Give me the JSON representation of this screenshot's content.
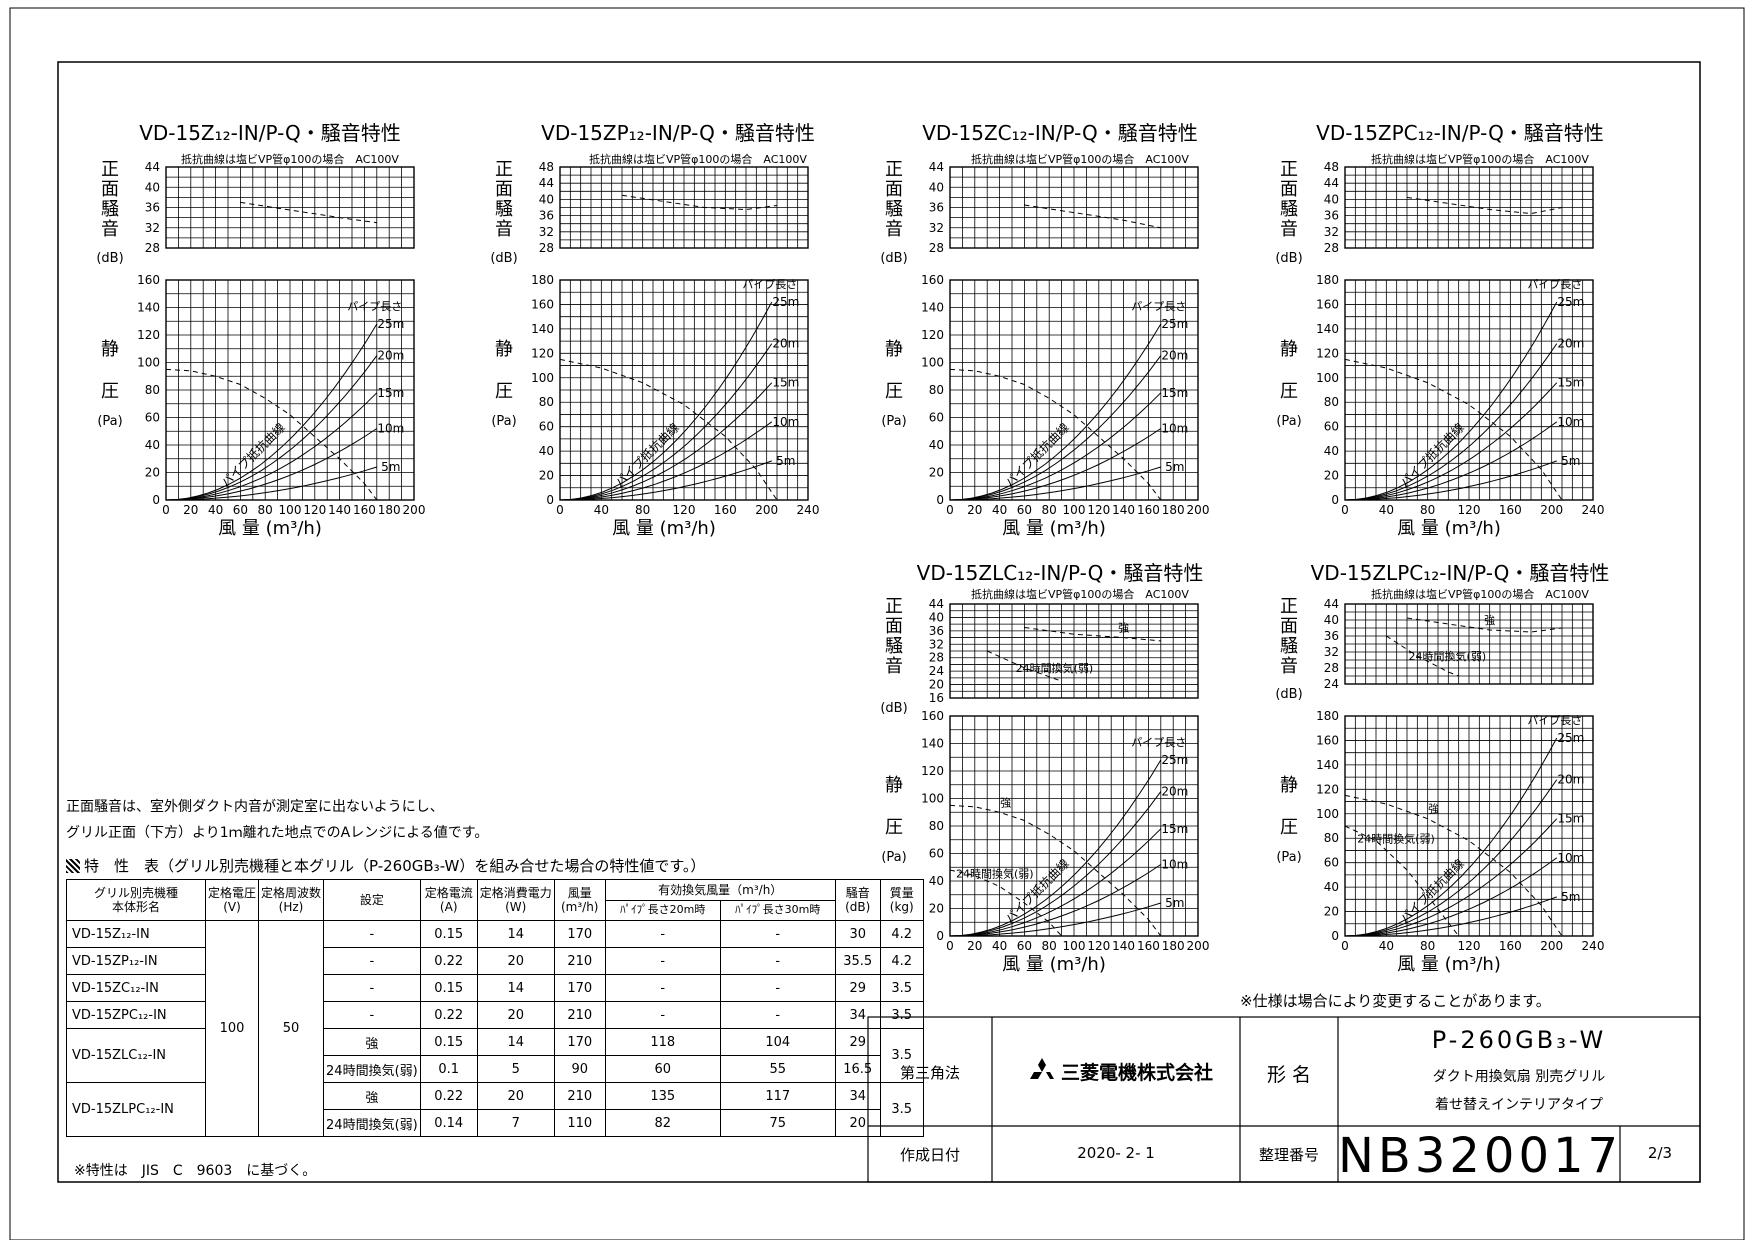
{
  "charts": [
    {
      "id": "c1",
      "title": "VD-15Z₁₂-IN/P-Q・騒音特性",
      "subtitle": "抵抗曲線は塩ビVP管φ100の場合　AC100V",
      "noise": {
        "ylabel": "正面騒音",
        "unit": "(dB)",
        "yticks": [
          "44",
          "40",
          "36",
          "32",
          "28"
        ]
      },
      "pressure": {
        "ylabel": [
          "静",
          "圧"
        ],
        "unit": "(Pa)",
        "yticks": [
          "160",
          "140",
          "120",
          "100",
          "80",
          "60",
          "40",
          "20",
          "0"
        ]
      },
      "xticks": [
        "0",
        "20",
        "40",
        "60",
        "80",
        "100",
        "120",
        "140",
        "160",
        "180",
        "200"
      ],
      "xlabel": "風 量 (m³/h)",
      "pipe_header": "パイプ長さ",
      "pipe_labels": [
        "25m",
        "20m",
        "15m",
        "10m",
        "5m"
      ],
      "curve_label": "パイプ抵抗曲線"
    },
    {
      "id": "c2",
      "title": "VD-15ZP₁₂-IN/P-Q・騒音特性",
      "subtitle": "抵抗曲線は塩ビVP管φ100の場合　AC100V",
      "noise": {
        "ylabel": "正面騒音",
        "unit": "(dB)",
        "yticks": [
          "48",
          "44",
          "40",
          "36",
          "32",
          "28"
        ]
      },
      "pressure": {
        "ylabel": [
          "静",
          "圧"
        ],
        "unit": "(Pa)",
        "yticks": [
          "180",
          "160",
          "140",
          "120",
          "100",
          "80",
          "60",
          "40",
          "20",
          "0"
        ]
      },
      "xticks": [
        "0",
        "40",
        "80",
        "120",
        "160",
        "200",
        "240"
      ],
      "xlabel": "風 量 (m³/h)",
      "pipe_header": "パイプ長さ",
      "pipe_labels": [
        "25m",
        "20m",
        "15m",
        "10m",
        "5m"
      ],
      "curve_label": "パイプ抵抗曲線"
    },
    {
      "id": "c3",
      "title": "VD-15ZC₁₂-IN/P-Q・騒音特性",
      "subtitle": "抵抗曲線は塩ビVP管φ100の場合　AC100V",
      "noise": {
        "ylabel": "正面騒音",
        "unit": "(dB)",
        "yticks": [
          "44",
          "40",
          "36",
          "32",
          "28"
        ]
      },
      "pressure": {
        "ylabel": [
          "静",
          "圧"
        ],
        "unit": "(Pa)",
        "yticks": [
          "160",
          "140",
          "120",
          "100",
          "80",
          "60",
          "40",
          "20",
          "0"
        ]
      },
      "xticks": [
        "0",
        "20",
        "40",
        "60",
        "80",
        "100",
        "120",
        "140",
        "160",
        "180",
        "200"
      ],
      "xlabel": "風 量 (m³/h)",
      "pipe_header": "パイプ長さ",
      "pipe_labels": [
        "25m",
        "20m",
        "15m",
        "10m",
        "5m"
      ],
      "curve_label": "パイプ抵抗曲線"
    },
    {
      "id": "c4",
      "title": "VD-15ZPC₁₂-IN/P-Q・騒音特性",
      "subtitle": "抵抗曲線は塩ビVP管φ100の場合　AC100V",
      "noise": {
        "ylabel": "正面騒音",
        "unit": "(dB)",
        "yticks": [
          "48",
          "44",
          "40",
          "36",
          "32",
          "28"
        ]
      },
      "pressure": {
        "ylabel": [
          "静",
          "圧"
        ],
        "unit": "(Pa)",
        "yticks": [
          "180",
          "160",
          "140",
          "120",
          "100",
          "80",
          "60",
          "40",
          "20",
          "0"
        ]
      },
      "xticks": [
        "0",
        "40",
        "80",
        "120",
        "160",
        "200",
        "240"
      ],
      "xlabel": "風 量 (m³/h)",
      "pipe_header": "パイプ長さ",
      "pipe_labels": [
        "25m",
        "20m",
        "15m",
        "10m",
        "5m"
      ],
      "curve_label": "パイプ抵抗曲線"
    },
    {
      "id": "c5",
      "title": "VD-15ZLC₁₂-IN/P-Q・騒音特性",
      "subtitle": "抵抗曲線は塩ビVP管φ100の場合　AC100V",
      "noise": {
        "ylabel": "正面騒音",
        "unit": "(dB)",
        "yticks": [
          "44",
          "40",
          "36",
          "32",
          "28",
          "24",
          "20",
          "16"
        ],
        "strong": "強",
        "weak": "24時間換気(弱)"
      },
      "pressure": {
        "ylabel": [
          "静",
          "圧"
        ],
        "unit": "(Pa)",
        "yticks": [
          "160",
          "140",
          "120",
          "100",
          "80",
          "60",
          "40",
          "20",
          "0"
        ],
        "strong": "強",
        "weak": "24時間換気(弱)"
      },
      "xticks": [
        "0",
        "20",
        "40",
        "60",
        "80",
        "100",
        "120",
        "140",
        "160",
        "180",
        "200"
      ],
      "xlabel": "風 量 (m³/h)",
      "pipe_header": "パイプ長さ",
      "pipe_labels": [
        "25m",
        "20m",
        "15m",
        "10m",
        "5m"
      ],
      "curve_label": "パイプ抵抗曲線"
    },
    {
      "id": "c6",
      "title": "VD-15ZLPC₁₂-IN/P-Q・騒音特性",
      "subtitle": "抵抗曲線は塩ビVP管φ100の場合　AC100V",
      "noise": {
        "ylabel": "正面騒音",
        "unit": "(dB)",
        "yticks": [
          "44",
          "40",
          "36",
          "32",
          "28",
          "24"
        ],
        "strong": "強",
        "weak": "24時間換気(弱)"
      },
      "pressure": {
        "ylabel": [
          "静",
          "圧"
        ],
        "unit": "(Pa)",
        "yticks": [
          "180",
          "160",
          "140",
          "120",
          "100",
          "80",
          "60",
          "40",
          "20",
          "0"
        ],
        "strong": "強",
        "weak": "24時間換気(弱)"
      },
      "xticks": [
        "0",
        "40",
        "80",
        "120",
        "160",
        "200",
        "240"
      ],
      "xlabel": "風 量 (m³/h)",
      "pipe_header": "パイプ長さ",
      "pipe_labels": [
        "25m",
        "20m",
        "15m",
        "10m",
        "5m"
      ],
      "curve_label": "パイプ抵抗曲線"
    }
  ],
  "chart_data": [
    {
      "type": "line",
      "id": "c1",
      "x_range": [
        0,
        200
      ],
      "noise_range": [
        28,
        44
      ],
      "pressure_range": [
        0,
        160
      ],
      "noise": [
        [
          60,
          37
        ],
        [
          100,
          35.5
        ],
        [
          140,
          34
        ],
        [
          170,
          33
        ]
      ],
      "pq": [
        [
          0,
          95
        ],
        [
          20,
          94
        ],
        [
          40,
          90
        ],
        [
          60,
          84
        ],
        [
          80,
          74
        ],
        [
          100,
          62
        ],
        [
          120,
          46
        ],
        [
          140,
          30
        ],
        [
          160,
          12
        ],
        [
          170,
          0
        ]
      ],
      "pipe": [
        {
          "name": "25m",
          "end": [
            170,
            128
          ]
        },
        {
          "name": "20m",
          "end": [
            170,
            105
          ]
        },
        {
          "name": "15m",
          "end": [
            170,
            78
          ]
        },
        {
          "name": "10m",
          "end": [
            170,
            52
          ]
        },
        {
          "name": "5m",
          "end": [
            170,
            24
          ]
        }
      ]
    },
    {
      "type": "line",
      "id": "c2",
      "x_range": [
        0,
        240
      ],
      "noise_range": [
        28,
        48
      ],
      "pressure_range": [
        0,
        180
      ],
      "noise": [
        [
          60,
          41
        ],
        [
          100,
          39.5
        ],
        [
          140,
          38
        ],
        [
          180,
          37.5
        ],
        [
          210,
          38.5
        ]
      ],
      "pq": [
        [
          0,
          115
        ],
        [
          40,
          108
        ],
        [
          80,
          96
        ],
        [
          120,
          78
        ],
        [
          160,
          52
        ],
        [
          190,
          25
        ],
        [
          210,
          0
        ]
      ],
      "pipe": [
        {
          "name": "25m",
          "end": [
            205,
            162
          ]
        },
        {
          "name": "20m",
          "end": [
            205,
            128
          ]
        },
        {
          "name": "15m",
          "end": [
            205,
            96
          ]
        },
        {
          "name": "10m",
          "end": [
            205,
            64
          ]
        },
        {
          "name": "5m",
          "end": [
            205,
            32
          ]
        }
      ]
    },
    {
      "type": "line",
      "id": "c3",
      "x_range": [
        0,
        200
      ],
      "noise_range": [
        28,
        44
      ],
      "pressure_range": [
        0,
        160
      ],
      "noise": [
        [
          60,
          36.5
        ],
        [
          100,
          35
        ],
        [
          140,
          33.5
        ],
        [
          170,
          32
        ]
      ],
      "pq": [
        [
          0,
          95
        ],
        [
          20,
          94
        ],
        [
          40,
          90
        ],
        [
          60,
          84
        ],
        [
          80,
          74
        ],
        [
          100,
          62
        ],
        [
          120,
          46
        ],
        [
          140,
          30
        ],
        [
          160,
          12
        ],
        [
          170,
          0
        ]
      ],
      "pipe": [
        {
          "name": "25m",
          "end": [
            170,
            128
          ]
        },
        {
          "name": "20m",
          "end": [
            170,
            105
          ]
        },
        {
          "name": "15m",
          "end": [
            170,
            78
          ]
        },
        {
          "name": "10m",
          "end": [
            170,
            52
          ]
        },
        {
          "name": "5m",
          "end": [
            170,
            24
          ]
        }
      ]
    },
    {
      "type": "line",
      "id": "c4",
      "x_range": [
        0,
        240
      ],
      "noise_range": [
        28,
        48
      ],
      "pressure_range": [
        0,
        180
      ],
      "noise": [
        [
          60,
          40.5
        ],
        [
          100,
          39
        ],
        [
          140,
          37.5
        ],
        [
          180,
          36.5
        ],
        [
          210,
          38
        ]
      ],
      "pq": [
        [
          0,
          115
        ],
        [
          40,
          108
        ],
        [
          80,
          96
        ],
        [
          120,
          78
        ],
        [
          160,
          52
        ],
        [
          190,
          25
        ],
        [
          210,
          0
        ]
      ],
      "pipe": [
        {
          "name": "25m",
          "end": [
            205,
            162
          ]
        },
        {
          "name": "20m",
          "end": [
            205,
            128
          ]
        },
        {
          "name": "15m",
          "end": [
            205,
            96
          ]
        },
        {
          "name": "10m",
          "end": [
            205,
            64
          ]
        },
        {
          "name": "5m",
          "end": [
            205,
            32
          ]
        }
      ]
    },
    {
      "type": "line",
      "id": "c5",
      "x_range": [
        0,
        200
      ],
      "noise_range": [
        16,
        44
      ],
      "pressure_range": [
        0,
        160
      ],
      "noise_strong": [
        [
          60,
          37
        ],
        [
          100,
          35
        ],
        [
          140,
          34
        ],
        [
          170,
          33
        ]
      ],
      "noise_weak": [
        [
          30,
          30
        ],
        [
          60,
          25
        ],
        [
          90,
          21
        ]
      ],
      "pq_strong": [
        [
          0,
          95
        ],
        [
          20,
          94
        ],
        [
          40,
          90
        ],
        [
          60,
          84
        ],
        [
          80,
          74
        ],
        [
          100,
          62
        ],
        [
          120,
          46
        ],
        [
          140,
          30
        ],
        [
          160,
          12
        ],
        [
          170,
          0
        ]
      ],
      "pq_weak": [
        [
          0,
          48
        ],
        [
          20,
          44
        ],
        [
          40,
          36
        ],
        [
          60,
          24
        ],
        [
          80,
          10
        ],
        [
          90,
          0
        ]
      ],
      "pipe": [
        {
          "name": "25m",
          "end": [
            170,
            128
          ]
        },
        {
          "name": "20m",
          "end": [
            170,
            105
          ]
        },
        {
          "name": "15m",
          "end": [
            170,
            78
          ]
        },
        {
          "name": "10m",
          "end": [
            170,
            52
          ]
        },
        {
          "name": "5m",
          "end": [
            170,
            24
          ]
        }
      ]
    },
    {
      "type": "line",
      "id": "c6",
      "x_range": [
        0,
        240
      ],
      "noise_range": [
        24,
        44
      ],
      "pressure_range": [
        0,
        180
      ],
      "noise_strong": [
        [
          60,
          40.5
        ],
        [
          100,
          39
        ],
        [
          140,
          37.5
        ],
        [
          180,
          37
        ],
        [
          210,
          38
        ]
      ],
      "noise_weak": [
        [
          40,
          36
        ],
        [
          70,
          31
        ],
        [
          100,
          27
        ],
        [
          110,
          26
        ]
      ],
      "pq_strong": [
        [
          0,
          115
        ],
        [
          40,
          108
        ],
        [
          80,
          96
        ],
        [
          120,
          78
        ],
        [
          160,
          52
        ],
        [
          190,
          25
        ],
        [
          210,
          0
        ]
      ],
      "pq_weak": [
        [
          0,
          90
        ],
        [
          30,
          78
        ],
        [
          60,
          54
        ],
        [
          90,
          22
        ],
        [
          110,
          0
        ]
      ],
      "pipe": [
        {
          "name": "25m",
          "end": [
            205,
            162
          ]
        },
        {
          "name": "20m",
          "end": [
            205,
            128
          ]
        },
        {
          "name": "15m",
          "end": [
            205,
            96
          ]
        },
        {
          "name": "10m",
          "end": [
            205,
            64
          ]
        },
        {
          "name": "5m",
          "end": [
            205,
            32
          ]
        }
      ]
    }
  ],
  "notes": {
    "noise_line1": "正面騒音は、室外側ダクト内音が測定室に出ないようにし、",
    "noise_line2": "グリル正面（下方）より1ｍ離れた地点でのAレンジによる値です。",
    "table_caption": "特　性　表（グリル別売機種と本グリル（P-260GB₃-W）を組み合せた場合の特性値です。）",
    "footnote": "※特性は　JIS　C　9603　に基づく。",
    "spec_change": "※仕様は場合により変更することがあります。"
  },
  "table": {
    "headers": {
      "model": "グリル別売機種\n本体形名",
      "voltage": "定格電圧\n(V)",
      "freq": "定格周波数\n(Hz)",
      "setting": "設定",
      "current": "定格電流\n(A)",
      "power": "定格消費電力\n(W)",
      "airflow": "風量\n(m³/h)",
      "eff": "有効換気風量（m³/h）",
      "eff20": "ﾊﾟｲﾌﾟ長さ20m時",
      "eff30": "ﾊﾟｲﾌﾟ長さ30m時",
      "noise": "騒音\n(dB)",
      "mass": "質量\n(kg)"
    },
    "voltage": "100",
    "freq": "50",
    "rows": [
      {
        "model": "VD-15Z₁₂-IN",
        "setting": "-",
        "current": "0.15",
        "power": "14",
        "airflow": "170",
        "eff20": "-",
        "eff30": "-",
        "noise": "30",
        "mass": "4.2"
      },
      {
        "model": "VD-15ZP₁₂-IN",
        "setting": "-",
        "current": "0.22",
        "power": "20",
        "airflow": "210",
        "eff20": "-",
        "eff30": "-",
        "noise": "35.5",
        "mass": "4.2"
      },
      {
        "model": "VD-15ZC₁₂-IN",
        "setting": "-",
        "current": "0.15",
        "power": "14",
        "airflow": "170",
        "eff20": "-",
        "eff30": "-",
        "noise": "29",
        "mass": "3.5"
      },
      {
        "model": "VD-15ZPC₁₂-IN",
        "setting": "-",
        "current": "0.22",
        "power": "20",
        "airflow": "210",
        "eff20": "-",
        "eff30": "-",
        "noise": "34",
        "mass": "3.5"
      },
      {
        "model": "VD-15ZLC₁₂-IN",
        "setting": "強",
        "current": "0.15",
        "power": "14",
        "airflow": "170",
        "eff20": "118",
        "eff30": "104",
        "noise": "29",
        "mass": "3.5"
      },
      {
        "model": "",
        "setting": "24時間換気(弱)",
        "current": "0.1",
        "power": "5",
        "airflow": "90",
        "eff20": "60",
        "eff30": "55",
        "noise": "16.5",
        "mass": ""
      },
      {
        "model": "VD-15ZLPC₁₂-IN",
        "setting": "強",
        "current": "0.22",
        "power": "20",
        "airflow": "210",
        "eff20": "135",
        "eff30": "117",
        "noise": "34",
        "mass": "3.5"
      },
      {
        "model": "",
        "setting": "24時間換気(弱)",
        "current": "0.14",
        "power": "7",
        "airflow": "110",
        "eff20": "82",
        "eff30": "75",
        "noise": "20",
        "mass": ""
      }
    ]
  },
  "title_block": {
    "projection": "第三角法",
    "company": "三菱電機株式会社",
    "form_label": "形 名",
    "model": "P-260GB₃-W",
    "desc1": "ダクト用換気扇 別売グリル",
    "desc2": "着せ替えインテリアタイプ",
    "date_label": "作成日付",
    "date": "2020- 2- 1",
    "number_label": "整理番号",
    "number": "NB320017",
    "page": "2/3"
  }
}
